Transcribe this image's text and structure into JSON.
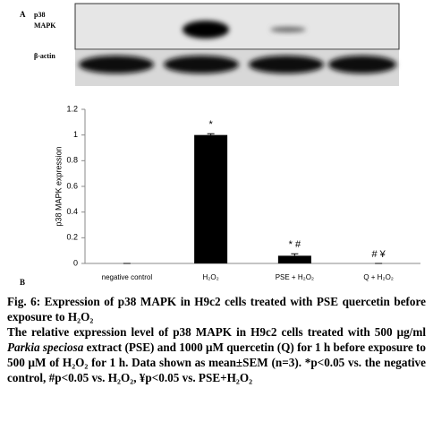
{
  "panel_a": {
    "label": "A",
    "p38_label_lines": [
      "p38",
      "MAPK"
    ],
    "actin_label": "β-actin"
  },
  "panel_b": {
    "label": "B"
  },
  "chart_data": {
    "type": "bar",
    "y_label": "p38 MAPK expression",
    "categories": [
      "negative control",
      "H₂O₂",
      "PSE + H₂O₂",
      "Q + H₂O₂"
    ],
    "values": [
      0,
      1,
      0.06,
      0
    ],
    "errors": [
      0,
      0.01,
      0.015,
      0
    ],
    "significance": [
      null,
      "*",
      "* #",
      "# ¥"
    ],
    "color": "#000000",
    "ylim": [
      0,
      1.2
    ],
    "yticks": [
      0,
      0.2,
      0.4,
      0.6,
      0.8,
      1,
      1.2
    ],
    "grid": false
  },
  "caption": {
    "title": "Fig. 6: Expression of p38 MAPK in H9c2 cells treated with PSE quercetin before exposure to H₂O₂",
    "body": [
      "The relative expression level of p38 MAPK in H9c2 cells treated with 500 μg/ml ",
      "Parkia speciosa",
      " extract (PSE) and 1000 μM quercetin (Q) for 1 h before exposure to 500 μM of H₂O₂ for 1 h. Data shown as mean±SEM (n=3). *p<0.05 vs. the negative control, #p<0.05 vs. H₂O₂, ¥p<0.05 vs. PSE+H₂O₂"
    ]
  }
}
